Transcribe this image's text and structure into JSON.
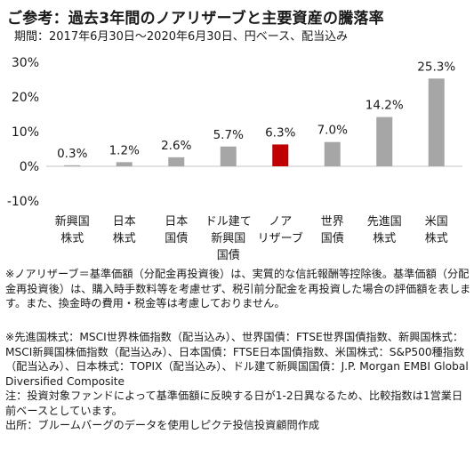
{
  "header": {
    "title": "ご参考：過去3年間のノアリザーブと主要資産の騰落率",
    "subtitle": "期間：2017年6月30日～2020年6月30日、円ベース、配当込み"
  },
  "chart_data": {
    "type": "bar",
    "title": "ご参考：過去3年間のノアリザーブと主要資産の騰落率",
    "subtitle": "期間：2017年6月30日～2020年6月30日、円ベース、配当込み",
    "categories": [
      [
        "新興国",
        "株式"
      ],
      [
        "日本",
        "株式"
      ],
      [
        "日本",
        "国債"
      ],
      [
        "ドル建て",
        "新興国",
        "国債"
      ],
      [
        "ノア",
        "リザーブ"
      ],
      [
        "世界",
        "国債"
      ],
      [
        "先進国",
        "株式"
      ],
      [
        "米国",
        "株式"
      ]
    ],
    "values": [
      0.3,
      1.2,
      2.6,
      5.7,
      6.3,
      7.0,
      14.2,
      25.3
    ],
    "value_labels": [
      "0.3%",
      "1.2%",
      "2.6%",
      "5.7%",
      "6.3%",
      "7.0%",
      "14.2%",
      "25.3%"
    ],
    "ylim": [
      -10,
      30
    ],
    "yticks": [
      -10,
      0,
      10,
      20,
      30
    ],
    "ytick_labels": [
      "-10%",
      "0%",
      "10%",
      "20%",
      "30%"
    ],
    "highlight_index": 4,
    "colors": {
      "bar": "#a6a6a6",
      "highlight": "#c00000",
      "zero_line": "#d9d9d9"
    },
    "grid": false,
    "legend": "none"
  },
  "notes": {
    "note1": "※ノアリザーブ＝基準価額（分配金再投資後）は、実質的な信託報酬等控除後。基準価額（分配金再投資後）は、購入時手数料等を考慮せず、税引前分配金を再投資した場合の評価額を表します。また、換金時の費用・税金等は考慮しておりません。",
    "note2": "※先進国株式：MSCI世界株価指数（配当込み）、世界国債：FTSE世界国債指数、新興国株式：MSCI新興国株価指数（配当込み）、日本国債：FTSE日本国債指数、米国株式：S&P500種指数（配当込み）、日本株式：TOPIX（配当込み）、ドル建て新興国国債：J.P. Morgan EMBI Global Diversified Composite",
    "note3": "注：投資対象ファンドによって基準価額に反映する日が1-2日異なるため、比較指数は1営業日前ベースとしています。",
    "source": "出所：ブルームバーグのデータを使用しピクテ投信投資顧問作成"
  }
}
